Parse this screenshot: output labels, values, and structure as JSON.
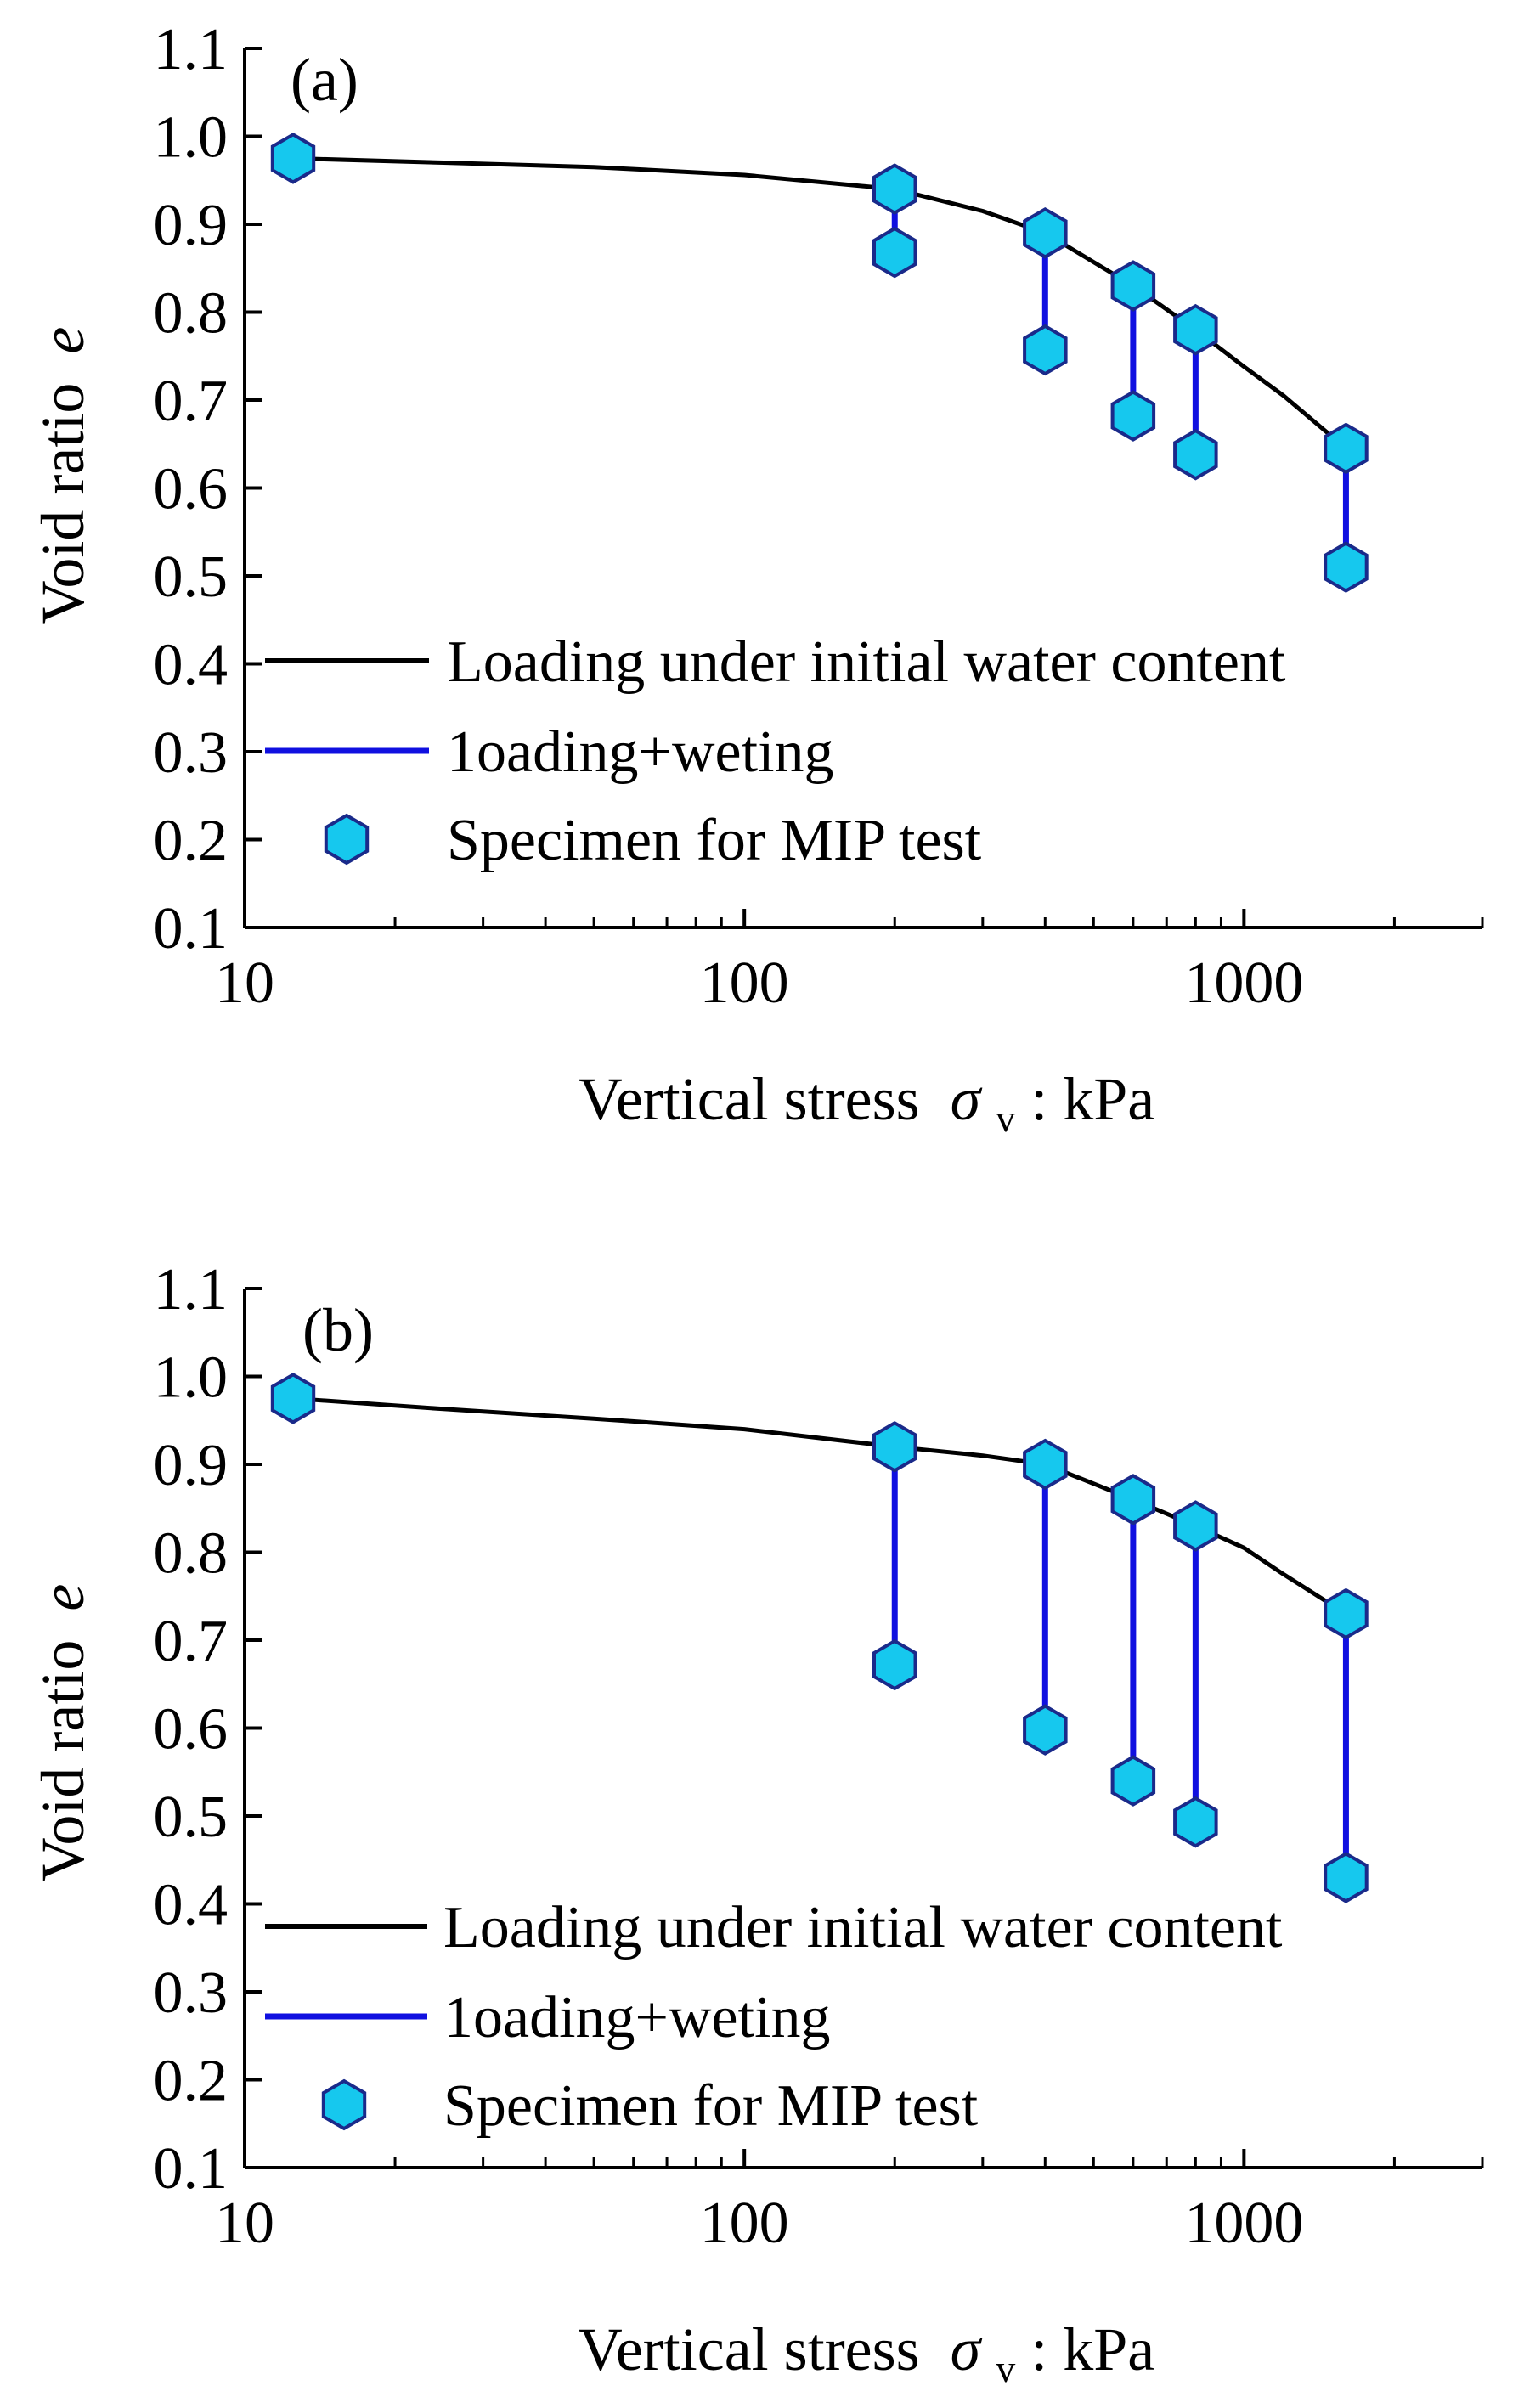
{
  "colors": {
    "loading": "#000000",
    "wetting": "#1010e0",
    "marker_fill": "#16c8ee",
    "marker_stroke": "#1a2a8a"
  },
  "chart_data": [
    {
      "type": "line",
      "panel_label": "(a)",
      "xlabel": "Vertical stress",
      "xlabel_symbol": "σ",
      "xlabel_subscript": "v",
      "xlabel_unit": " : kPa",
      "ylabel": "Void ratio",
      "ylabel_symbol": "e",
      "xscale": "log",
      "xlim": [
        10,
        3000
      ],
      "ylim": [
        0.1,
        1.1
      ],
      "xticks": [
        10,
        100,
        1000
      ],
      "xtick_labels": [
        "10",
        "100",
        "1000"
      ],
      "yticks": [
        0.1,
        0.2,
        0.3,
        0.4,
        0.5,
        0.6,
        0.7,
        0.8,
        0.9,
        1.0,
        1.1
      ],
      "ytick_labels": [
        "0.1",
        "0.2",
        "0.3",
        "0.4",
        "0.5",
        "0.6",
        "0.7",
        "0.8",
        "0.9",
        "1.0",
        "1.1"
      ],
      "legend_position": "lower-left",
      "legend": {
        "loading": "Loading under initial water content",
        "wetting": "1oading+weting",
        "specimen": "Specimen for MIP test"
      },
      "loading_curve": {
        "x": [
          12.5,
          25,
          50,
          100,
          200,
          300,
          400,
          600,
          800,
          1000,
          1200,
          1600
        ],
        "y": [
          0.975,
          0.97,
          0.965,
          0.956,
          0.94,
          0.915,
          0.89,
          0.83,
          0.78,
          0.738,
          0.705,
          0.645
        ]
      },
      "wetting_paths": [
        {
          "x": 200,
          "y_from": 0.94,
          "y_to": 0.868
        },
        {
          "x": 400,
          "y_from": 0.89,
          "y_to": 0.757
        },
        {
          "x": 600,
          "y_from": 0.83,
          "y_to": 0.682
        },
        {
          "x": 800,
          "y_from": 0.78,
          "y_to": 0.638
        },
        {
          "x": 1600,
          "y_from": 0.645,
          "y_to": 0.51
        }
      ],
      "specimens": {
        "x": [
          12.5,
          200,
          200,
          400,
          400,
          600,
          600,
          800,
          800,
          1600,
          1600
        ],
        "y": [
          0.975,
          0.94,
          0.868,
          0.89,
          0.757,
          0.83,
          0.682,
          0.78,
          0.638,
          0.645,
          0.51
        ]
      }
    },
    {
      "type": "line",
      "panel_label": "(b)",
      "xlabel": "Vertical stress",
      "xlabel_symbol": "σ",
      "xlabel_subscript": "v",
      "xlabel_unit": " : kPa",
      "ylabel": "Void ratio",
      "ylabel_symbol": "e",
      "xscale": "log",
      "xlim": [
        10,
        3000
      ],
      "ylim": [
        0.1,
        1.1
      ],
      "xticks": [
        10,
        100,
        1000
      ],
      "xtick_labels": [
        "10",
        "100",
        "1000"
      ],
      "yticks": [
        0.1,
        0.2,
        0.3,
        0.4,
        0.5,
        0.6,
        0.7,
        0.8,
        0.9,
        1.0,
        1.1
      ],
      "ytick_labels": [
        "0.1",
        "0.2",
        "0.3",
        "0.4",
        "0.5",
        "0.6",
        "0.7",
        "0.8",
        "0.9",
        "1.0",
        "1.1"
      ],
      "legend_position": "lower-left",
      "legend": {
        "loading": "Loading under initial water content",
        "wetting": "1oading+weting",
        "specimen": "Specimen for MIP test"
      },
      "loading_curve": {
        "x": [
          12.5,
          25,
          50,
          100,
          200,
          300,
          400,
          600,
          800,
          1000,
          1200,
          1600
        ],
        "y": [
          0.975,
          0.963,
          0.952,
          0.94,
          0.92,
          0.91,
          0.9,
          0.86,
          0.83,
          0.805,
          0.775,
          0.73
        ]
      },
      "wetting_paths": [
        {
          "x": 200,
          "y_from": 0.92,
          "y_to": 0.672
        },
        {
          "x": 400,
          "y_from": 0.9,
          "y_to": 0.598
        },
        {
          "x": 600,
          "y_from": 0.86,
          "y_to": 0.54
        },
        {
          "x": 800,
          "y_from": 0.83,
          "y_to": 0.493
        },
        {
          "x": 1600,
          "y_from": 0.73,
          "y_to": 0.43
        }
      ],
      "specimens": {
        "x": [
          12.5,
          200,
          200,
          400,
          400,
          600,
          600,
          800,
          800,
          1600,
          1600
        ],
        "y": [
          0.975,
          0.92,
          0.672,
          0.9,
          0.598,
          0.86,
          0.54,
          0.83,
          0.493,
          0.73,
          0.43
        ]
      }
    }
  ]
}
